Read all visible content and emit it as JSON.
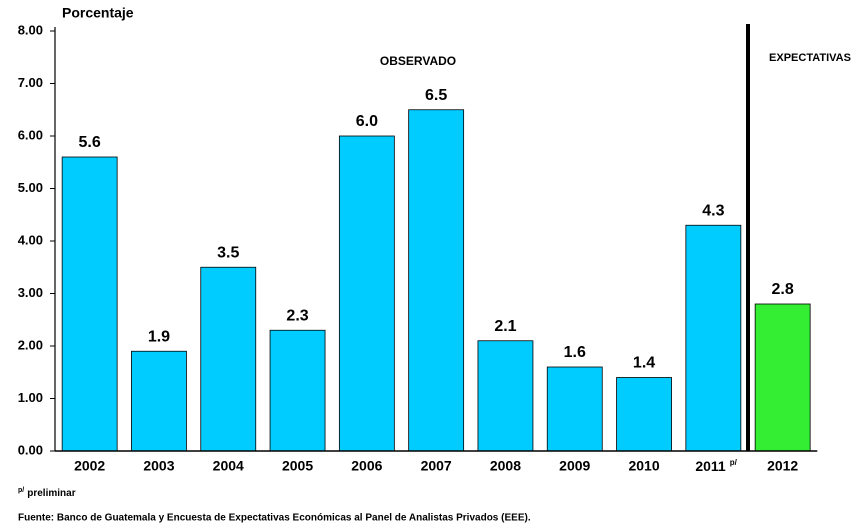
{
  "chart_data": {
    "type": "bar",
    "y_label": "Porcentaje",
    "categories": [
      "2002",
      "2003",
      "2004",
      "2005",
      "2006",
      "2007",
      "2008",
      "2009",
      "2010",
      "2011",
      "2012"
    ],
    "category_superscript": {
      "index": 9,
      "text": "p/"
    },
    "values": [
      5.6,
      1.9,
      3.5,
      2.3,
      6.0,
      6.5,
      2.1,
      1.6,
      1.4,
      4.3,
      2.8
    ],
    "value_labels": [
      "5.6",
      "1.9",
      "3.5",
      "2.3",
      "6.0",
      "6.5",
      "2.1",
      "1.6",
      "1.4",
      "4.3",
      "2.8"
    ],
    "colors": [
      "#00ccff",
      "#00ccff",
      "#00ccff",
      "#00ccff",
      "#00ccff",
      "#00ccff",
      "#00ccff",
      "#00ccff",
      "#00ccff",
      "#00ccff",
      "#33ee33"
    ],
    "ylim": [
      0,
      8
    ],
    "yticks": [
      {
        "value": 0,
        "label": "0.00"
      },
      {
        "value": 1,
        "label": "1.00"
      },
      {
        "value": 2,
        "label": "2.00"
      },
      {
        "value": 3,
        "label": "3.00"
      },
      {
        "value": 4,
        "label": "4.00"
      },
      {
        "value": 5,
        "label": "5.00"
      },
      {
        "value": 6,
        "label": "6.00"
      },
      {
        "value": 7,
        "label": "7.00"
      },
      {
        "value": 8,
        "label": "8.00"
      }
    ],
    "annotations": [
      "OBSERVADO",
      "EXPECTATIVAS"
    ],
    "footnote": {
      "mark": "p/",
      "text": "preliminar"
    },
    "source": "Fuente: Banco de Guatemala y Encuesta de Expectativas Económicas al Panel de Analistas Privados (EEE)."
  }
}
